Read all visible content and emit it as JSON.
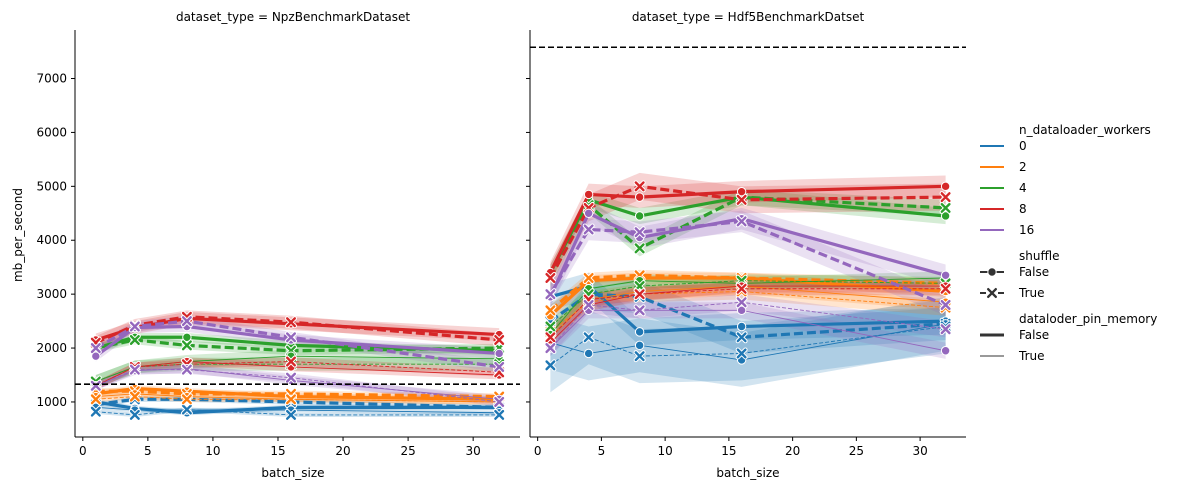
{
  "figure": {
    "colors": {
      "0": "#1f77b4",
      "2": "#ff7f0e",
      "4": "#2ca02c",
      "8": "#d62728",
      "16": "#9467bd"
    },
    "legend": {
      "workers_title": "n_dataloader_workers",
      "workers": [
        "0",
        "2",
        "4",
        "8",
        "16"
      ],
      "shuffle_title": "shuffle",
      "shuffle": [
        {
          "label": "False",
          "marker": "circle",
          "dash": "solid"
        },
        {
          "label": "True",
          "marker": "x",
          "dash": "dashed"
        }
      ],
      "pin_title": "dataloder_pin_memory",
      "pin": [
        {
          "label": "False",
          "width": "thick"
        },
        {
          "label": "True",
          "width": "thin"
        }
      ]
    }
  },
  "chart_data": [
    {
      "type": "line",
      "title": "dataset_type = NpzBenchmarkDataset",
      "xlabel": "batch_size",
      "ylabel": "mb_per_second",
      "x": [
        1,
        4,
        8,
        16,
        32
      ],
      "xlim": [
        -0.6,
        33.6
      ],
      "ylim": [
        350,
        7900
      ],
      "xticks": [
        0,
        5,
        10,
        15,
        20,
        25,
        30
      ],
      "yticks": [
        1000,
        2000,
        3000,
        4000,
        5000,
        6000,
        7000
      ],
      "reference_line": 1330,
      "series": [
        {
          "workers": "0",
          "shuffle": "False",
          "pin_memory": "False",
          "values": [
            1000,
            880,
            800,
            900,
            900
          ],
          "band": 50
        },
        {
          "workers": "0",
          "shuffle": "True",
          "pin_memory": "False",
          "values": [
            950,
            1050,
            1050,
            1000,
            900
          ],
          "band": 50
        },
        {
          "workers": "0",
          "shuffle": "False",
          "pin_memory": "True",
          "values": [
            900,
            850,
            850,
            850,
            800
          ],
          "band": 40
        },
        {
          "workers": "0",
          "shuffle": "True",
          "pin_memory": "True",
          "values": [
            820,
            760,
            860,
            760,
            760
          ],
          "band": 40
        },
        {
          "workers": "2",
          "shuffle": "False",
          "pin_memory": "False",
          "values": [
            1150,
            1250,
            1200,
            1100,
            1050
          ],
          "band": 60
        },
        {
          "workers": "2",
          "shuffle": "True",
          "pin_memory": "False",
          "values": [
            1200,
            1200,
            1150,
            1150,
            1100
          ],
          "band": 60
        },
        {
          "workers": "2",
          "shuffle": "False",
          "pin_memory": "True",
          "values": [
            1100,
            1150,
            1100,
            1050,
            1000
          ],
          "band": 50
        },
        {
          "workers": "2",
          "shuffle": "True",
          "pin_memory": "True",
          "values": [
            1050,
            1100,
            1050,
            1050,
            1000
          ],
          "band": 50
        },
        {
          "workers": "4",
          "shuffle": "False",
          "pin_memory": "False",
          "values": [
            2000,
            2200,
            2200,
            2050,
            1950
          ],
          "band": 80
        },
        {
          "workers": "4",
          "shuffle": "True",
          "pin_memory": "False",
          "values": [
            2000,
            2150,
            2050,
            1950,
            2000
          ],
          "band": 80
        },
        {
          "workers": "4",
          "shuffle": "False",
          "pin_memory": "True",
          "values": [
            1380,
            1650,
            1750,
            1850,
            1800
          ],
          "band": 120
        },
        {
          "workers": "4",
          "shuffle": "True",
          "pin_memory": "True",
          "values": [
            1380,
            1650,
            1700,
            1700,
            1700
          ],
          "band": 120
        },
        {
          "workers": "8",
          "shuffle": "False",
          "pin_memory": "False",
          "values": [
            2150,
            2380,
            2550,
            2450,
            2250
          ],
          "band": 120
        },
        {
          "workers": "8",
          "shuffle": "True",
          "pin_memory": "False",
          "values": [
            2100,
            2420,
            2580,
            2480,
            2150
          ],
          "band": 120
        },
        {
          "workers": "8",
          "shuffle": "False",
          "pin_memory": "True",
          "values": [
            1300,
            1650,
            1750,
            1650,
            1500
          ],
          "band": 80
        },
        {
          "workers": "8",
          "shuffle": "True",
          "pin_memory": "True",
          "values": [
            1300,
            1650,
            1700,
            1750,
            1550
          ],
          "band": 80
        },
        {
          "workers": "16",
          "shuffle": "False",
          "pin_memory": "False",
          "values": [
            1850,
            2380,
            2400,
            2150,
            1900
          ],
          "band": 100
        },
        {
          "workers": "16",
          "shuffle": "True",
          "pin_memory": "False",
          "values": [
            2000,
            2400,
            2500,
            2200,
            1650
          ],
          "band": 100
        },
        {
          "workers": "16",
          "shuffle": "False",
          "pin_memory": "True",
          "values": [
            1300,
            1580,
            1620,
            1400,
            1050
          ],
          "band": 80
        },
        {
          "workers": "16",
          "shuffle": "True",
          "pin_memory": "True",
          "values": [
            1300,
            1600,
            1600,
            1450,
            1000
          ],
          "band": 80
        }
      ]
    },
    {
      "type": "line",
      "title": "dataset_type = Hdf5BenchmarkDatset",
      "xlabel": "batch_size",
      "ylabel": "",
      "x": [
        1,
        4,
        8,
        16,
        32
      ],
      "xlim": [
        -0.6,
        33.6
      ],
      "ylim": [
        350,
        7900
      ],
      "xticks": [
        0,
        5,
        10,
        15,
        20,
        25,
        30
      ],
      "yticks": [
        1000,
        2000,
        3000,
        4000,
        5000,
        6000,
        7000
      ],
      "reference_line": 7580,
      "series": [
        {
          "workers": "0",
          "shuffle": "False",
          "pin_memory": "False",
          "values": [
            2950,
            3150,
            2300,
            2400,
            2500
          ],
          "band": 250
        },
        {
          "workers": "0",
          "shuffle": "True",
          "pin_memory": "False",
          "values": [
            2500,
            3000,
            2950,
            2200,
            2450
          ],
          "band": 300
        },
        {
          "workers": "0",
          "shuffle": "False",
          "pin_memory": "True",
          "values": [
            2100,
            1900,
            2050,
            1780,
            2450
          ],
          "band": 500
        },
        {
          "workers": "0",
          "shuffle": "True",
          "pin_memory": "True",
          "values": [
            1680,
            2200,
            1850,
            1900,
            2400
          ],
          "band": 500
        },
        {
          "workers": "2",
          "shuffle": "False",
          "pin_memory": "False",
          "values": [
            2600,
            3250,
            3300,
            3300,
            3050
          ],
          "band": 100
        },
        {
          "workers": "2",
          "shuffle": "True",
          "pin_memory": "False",
          "values": [
            2700,
            3300,
            3350,
            3300,
            3200
          ],
          "band": 100
        },
        {
          "workers": "2",
          "shuffle": "False",
          "pin_memory": "True",
          "values": [
            2200,
            2900,
            3050,
            3150,
            2850
          ],
          "band": 150
        },
        {
          "workers": "2",
          "shuffle": "True",
          "pin_memory": "True",
          "values": [
            2300,
            2850,
            3000,
            3050,
            2750
          ],
          "band": 150
        },
        {
          "workers": "4",
          "shuffle": "False",
          "pin_memory": "False",
          "values": [
            3400,
            4750,
            4450,
            4800,
            4450
          ],
          "band": 150
        },
        {
          "workers": "4",
          "shuffle": "True",
          "pin_memory": "False",
          "values": [
            3300,
            4650,
            3850,
            4800,
            4600
          ],
          "band": 150
        },
        {
          "workers": "4",
          "shuffle": "False",
          "pin_memory": "True",
          "values": [
            2250,
            3100,
            3250,
            3200,
            3300
          ],
          "band": 120
        },
        {
          "workers": "4",
          "shuffle": "True",
          "pin_memory": "True",
          "values": [
            2400,
            3000,
            3150,
            3250,
            3200
          ],
          "band": 120
        },
        {
          "workers": "8",
          "shuffle": "False",
          "pin_memory": "False",
          "values": [
            3400,
            4850,
            4800,
            4900,
            5000
          ],
          "band": 200
        },
        {
          "workers": "8",
          "shuffle": "True",
          "pin_memory": "False",
          "values": [
            3300,
            4600,
            5000,
            4750,
            4800
          ],
          "band": 250
        },
        {
          "workers": "8",
          "shuffle": "False",
          "pin_memory": "True",
          "values": [
            2100,
            2800,
            3000,
            3150,
            3150
          ],
          "band": 120
        },
        {
          "workers": "8",
          "shuffle": "True",
          "pin_memory": "True",
          "values": [
            2200,
            2900,
            3000,
            3100,
            3100
          ],
          "band": 120
        },
        {
          "workers": "16",
          "shuffle": "False",
          "pin_memory": "False",
          "values": [
            2950,
            4500,
            4050,
            4400,
            3350
          ],
          "band": 200
        },
        {
          "workers": "16",
          "shuffle": "True",
          "pin_memory": "False",
          "values": [
            3000,
            4200,
            4150,
            4350,
            2800
          ],
          "band": 200
        },
        {
          "workers": "16",
          "shuffle": "False",
          "pin_memory": "True",
          "values": [
            2000,
            2700,
            2700,
            2700,
            1950
          ],
          "band": 150
        },
        {
          "workers": "16",
          "shuffle": "True",
          "pin_memory": "True",
          "values": [
            2000,
            2800,
            2700,
            2850,
            2350
          ],
          "band": 150
        }
      ]
    }
  ]
}
